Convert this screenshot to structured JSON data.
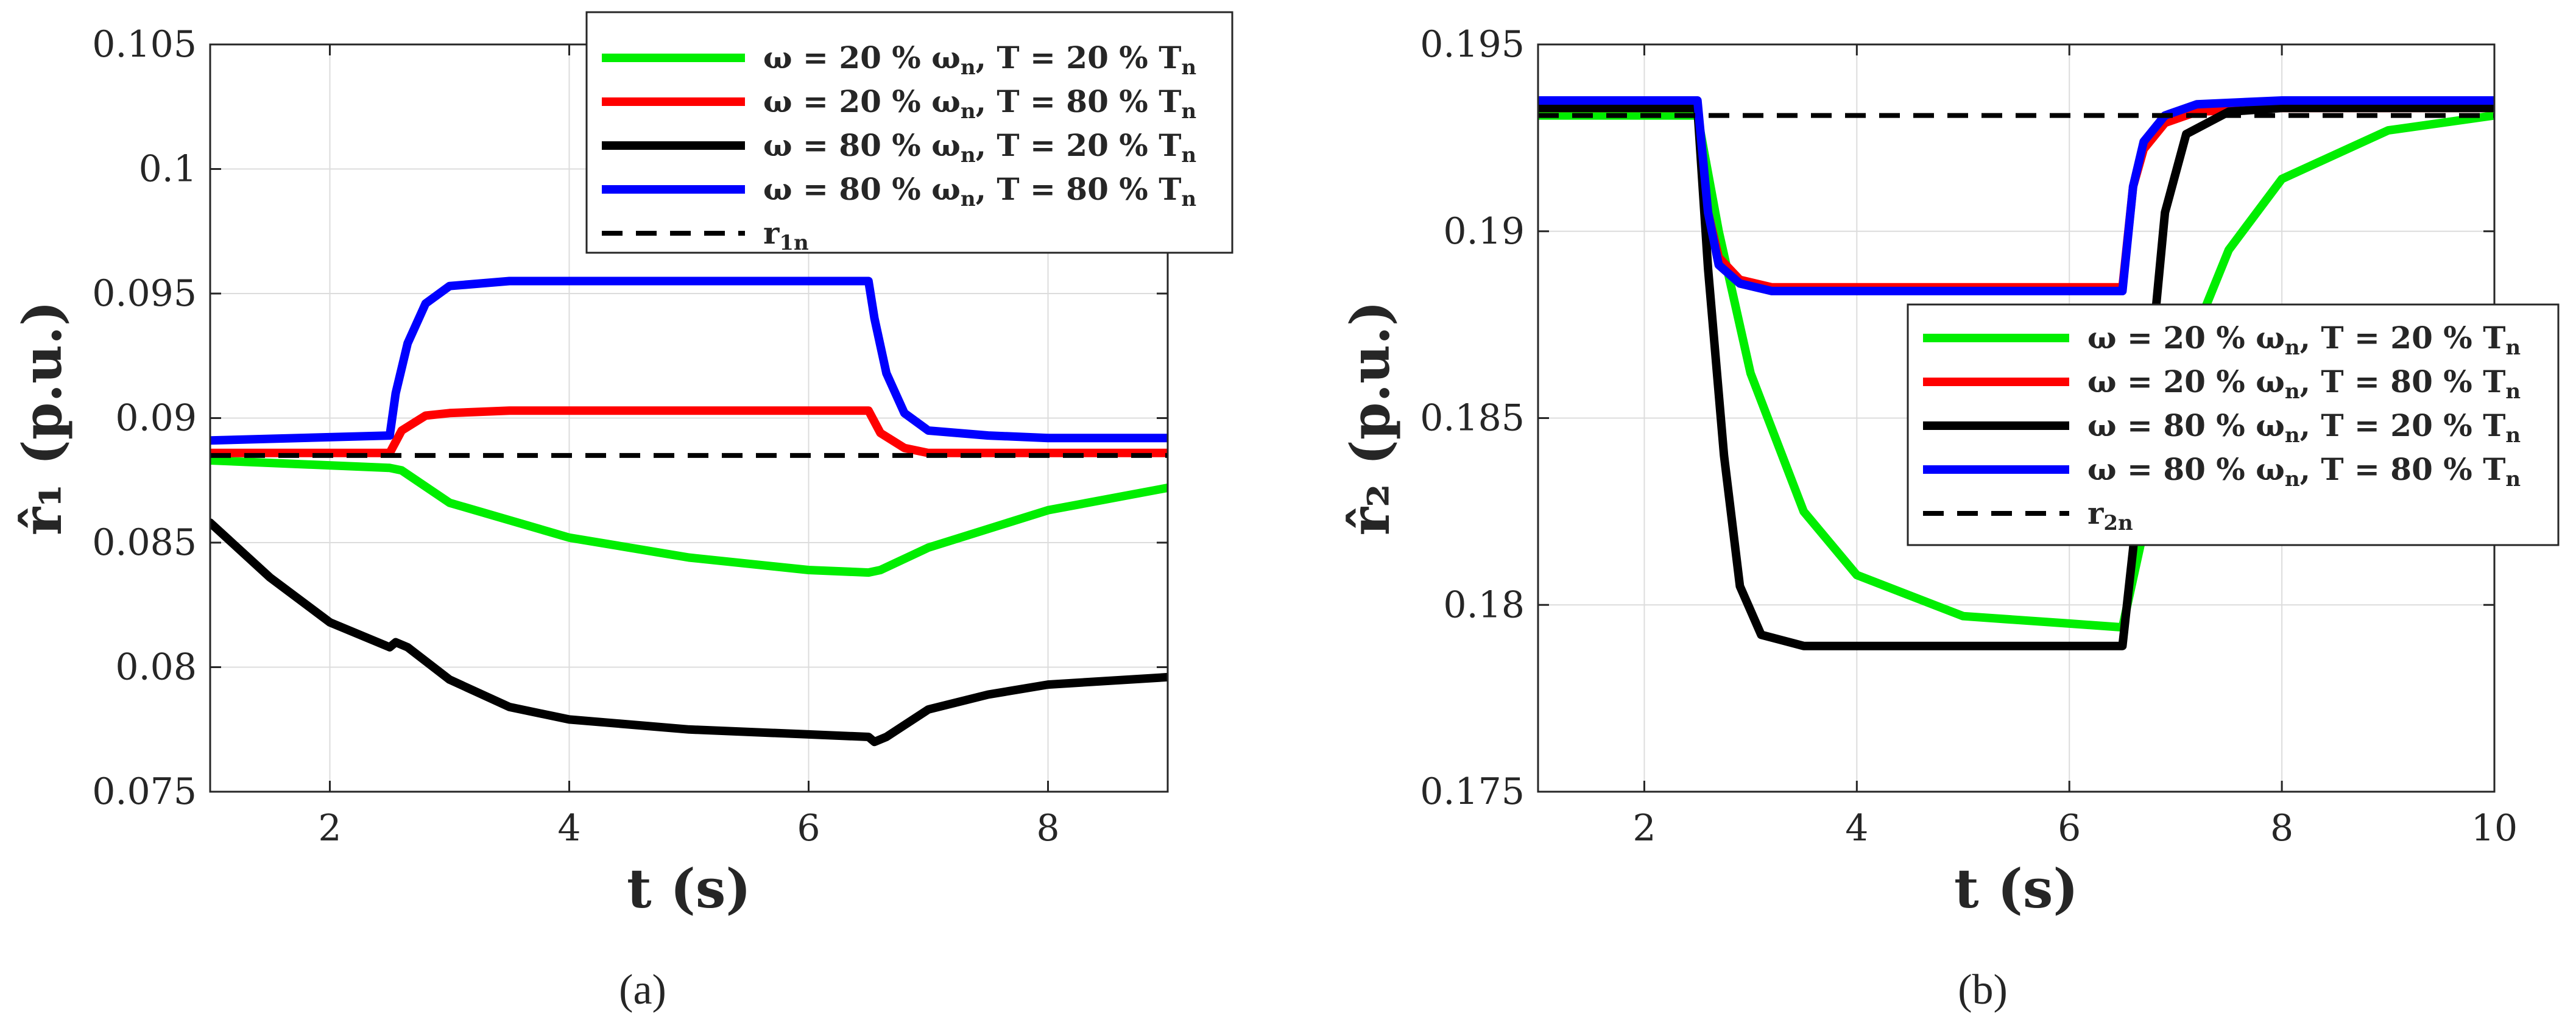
{
  "chart_data": [
    {
      "type": "line",
      "panel_label": "(a)",
      "xlabel": "t  (s)",
      "ylabel": "r̂₁  (p.u.)",
      "xlim": [
        1,
        9
      ],
      "ylim": [
        0.075,
        0.105
      ],
      "xticks": [
        2,
        4,
        6,
        8
      ],
      "xtick_labels": [
        "2",
        "4",
        "6",
        "8"
      ],
      "yticks": [
        0.075,
        0.08,
        0.085,
        0.09,
        0.095,
        0.1,
        0.105
      ],
      "ytick_labels": [
        "0.075",
        "0.08",
        "0.085",
        "0.09",
        "0.095",
        "0.1",
        "0.105"
      ],
      "grid": true,
      "legend_position": "top-right",
      "series": [
        {
          "name": "ω = 20 % ωn, T = 20 % Tn",
          "color": "#00ee00",
          "style": "solid",
          "x": [
            1,
            2.5,
            2.6,
            3,
            4,
            5,
            6,
            6.5,
            6.6,
            7,
            8,
            9
          ],
          "y": [
            0.0883,
            0.088,
            0.0879,
            0.0866,
            0.0852,
            0.0844,
            0.0839,
            0.0838,
            0.0839,
            0.0848,
            0.0863,
            0.0872
          ]
        },
        {
          "name": "ω = 20 % ωn, T = 80 % Tn",
          "color": "#ff0000",
          "style": "solid",
          "x": [
            1,
            2.5,
            2.6,
            2.8,
            3,
            3.5,
            4,
            5,
            6,
            6.5,
            6.6,
            6.8,
            7,
            8,
            9
          ],
          "y": [
            0.0886,
            0.0886,
            0.0895,
            0.0901,
            0.0902,
            0.0903,
            0.0903,
            0.0903,
            0.0903,
            0.0903,
            0.0894,
            0.0888,
            0.0886,
            0.0886,
            0.0886
          ]
        },
        {
          "name": "ω = 80 % ωn, T = 20 % Tn",
          "color": "#000000",
          "style": "solid",
          "x": [
            1,
            1.5,
            2,
            2.5,
            2.55,
            2.65,
            3,
            3.5,
            4,
            5,
            6,
            6.5,
            6.55,
            6.65,
            7,
            7.5,
            8,
            9
          ],
          "y": [
            0.0858,
            0.0836,
            0.0818,
            0.0808,
            0.081,
            0.0808,
            0.0795,
            0.0784,
            0.0779,
            0.0775,
            0.0773,
            0.0772,
            0.077,
            0.0772,
            0.0783,
            0.0789,
            0.0793,
            0.0796
          ]
        },
        {
          "name": "ω = 80 % ωn, T = 80 % Tn",
          "color": "#0000ff",
          "style": "solid",
          "x": [
            1,
            2.5,
            2.55,
            2.65,
            2.8,
            3,
            3.5,
            4,
            5,
            6,
            6.5,
            6.55,
            6.65,
            6.8,
            7,
            7.5,
            8,
            9
          ],
          "y": [
            0.0891,
            0.0893,
            0.091,
            0.093,
            0.0946,
            0.0953,
            0.0955,
            0.0955,
            0.0955,
            0.0955,
            0.0955,
            0.094,
            0.0918,
            0.0902,
            0.0895,
            0.0893,
            0.0892,
            0.0892
          ]
        },
        {
          "name": "r1n",
          "color": "#000000",
          "style": "dashed",
          "x": [
            1,
            9
          ],
          "y": [
            0.0885,
            0.0885
          ]
        }
      ],
      "legend": [
        {
          "prefix": "ω = 20 % ω",
          "sub1": "n",
          "mid": ", T = 20 % T",
          "sub2": "n"
        },
        {
          "prefix": "ω = 20 % ω",
          "sub1": "n",
          "mid": ", T = 80 % T",
          "sub2": "n"
        },
        {
          "prefix": "ω = 80 % ω",
          "sub1": "n",
          "mid": ", T = 20 % T",
          "sub2": "n"
        },
        {
          "prefix": "ω = 80 % ω",
          "sub1": "n",
          "mid": ", T = 80 % T",
          "sub2": "n"
        },
        {
          "prefix": "r",
          "sub1": "1n",
          "mid": "",
          "sub2": ""
        }
      ]
    },
    {
      "type": "line",
      "panel_label": "(b)",
      "xlabel": "t  (s)",
      "ylabel": "r̂₂  (p.u.)",
      "xlim": [
        1,
        10
      ],
      "ylim": [
        0.175,
        0.195
      ],
      "xticks": [
        2,
        4,
        6,
        8,
        10
      ],
      "xtick_labels": [
        "2",
        "4",
        "6",
        "8",
        "10"
      ],
      "yticks": [
        0.175,
        0.18,
        0.185,
        0.19,
        0.195
      ],
      "ytick_labels": [
        "0.175",
        "0.18",
        "0.185",
        "0.19",
        "0.195"
      ],
      "grid": true,
      "legend_position": "right",
      "series": [
        {
          "name": "ω = 20 % ωn, T = 20 % Tn",
          "color": "#00ee00",
          "style": "solid",
          "x": [
            1,
            2.5,
            2.7,
            3,
            3.5,
            4,
            5,
            6,
            6.5,
            6.7,
            7,
            7.5,
            8,
            9,
            10
          ],
          "y": [
            0.1931,
            0.1931,
            0.19,
            0.1862,
            0.1825,
            0.1808,
            0.1797,
            0.1795,
            0.1794,
            0.182,
            0.186,
            0.1895,
            0.1914,
            0.1927,
            0.1931
          ]
        },
        {
          "name": "ω = 20 % ωn, T = 80 % Tn",
          "color": "#ff0000",
          "style": "solid",
          "x": [
            1,
            2.5,
            2.6,
            2.7,
            2.9,
            3.2,
            4,
            5,
            6,
            6.5,
            6.6,
            6.7,
            6.9,
            7.2,
            8,
            10
          ],
          "y": [
            0.1933,
            0.1933,
            0.1905,
            0.1893,
            0.1887,
            0.1885,
            0.1885,
            0.1885,
            0.1885,
            0.1885,
            0.1912,
            0.1922,
            0.1929,
            0.1932,
            0.1933,
            0.1933
          ]
        },
        {
          "name": "ω = 80 % ωn, T = 20 % Tn",
          "color": "#000000",
          "style": "solid",
          "x": [
            1,
            2.5,
            2.6,
            2.75,
            2.9,
            3.1,
            3.5,
            4,
            5,
            6,
            6.5,
            6.6,
            6.75,
            6.9,
            7.1,
            7.5,
            8,
            10
          ],
          "y": [
            0.1933,
            0.1933,
            0.189,
            0.184,
            0.1805,
            0.1792,
            0.1789,
            0.1789,
            0.1789,
            0.1789,
            0.1789,
            0.1815,
            0.186,
            0.1905,
            0.1926,
            0.1932,
            0.1933,
            0.1933
          ]
        },
        {
          "name": "ω = 80 % ωn, T = 80 % Tn",
          "color": "#0000ff",
          "style": "solid",
          "x": [
            1,
            2.5,
            2.6,
            2.7,
            2.9,
            3.2,
            4,
            5,
            6,
            6.5,
            6.6,
            6.7,
            6.9,
            7.2,
            8,
            10
          ],
          "y": [
            0.1935,
            0.1935,
            0.1905,
            0.1891,
            0.1886,
            0.1884,
            0.1884,
            0.1884,
            0.1884,
            0.1884,
            0.1912,
            0.1924,
            0.1931,
            0.1934,
            0.1935,
            0.1935
          ]
        },
        {
          "name": "r2n",
          "color": "#000000",
          "style": "dashed",
          "x": [
            1,
            10
          ],
          "y": [
            0.1931,
            0.1931
          ]
        }
      ],
      "legend": [
        {
          "prefix": "ω = 20 % ω",
          "sub1": "n",
          "mid": ", T = 20 % T",
          "sub2": "n"
        },
        {
          "prefix": "ω = 20 % ω",
          "sub1": "n",
          "mid": ", T = 80 % T",
          "sub2": "n"
        },
        {
          "prefix": "ω = 80 % ω",
          "sub1": "n",
          "mid": ", T = 20 % T",
          "sub2": "n"
        },
        {
          "prefix": "ω = 80 % ω",
          "sub1": "n",
          "mid": ", T = 80 % T",
          "sub2": "n"
        },
        {
          "prefix": "r",
          "sub1": "2n",
          "mid": "",
          "sub2": ""
        }
      ]
    }
  ]
}
